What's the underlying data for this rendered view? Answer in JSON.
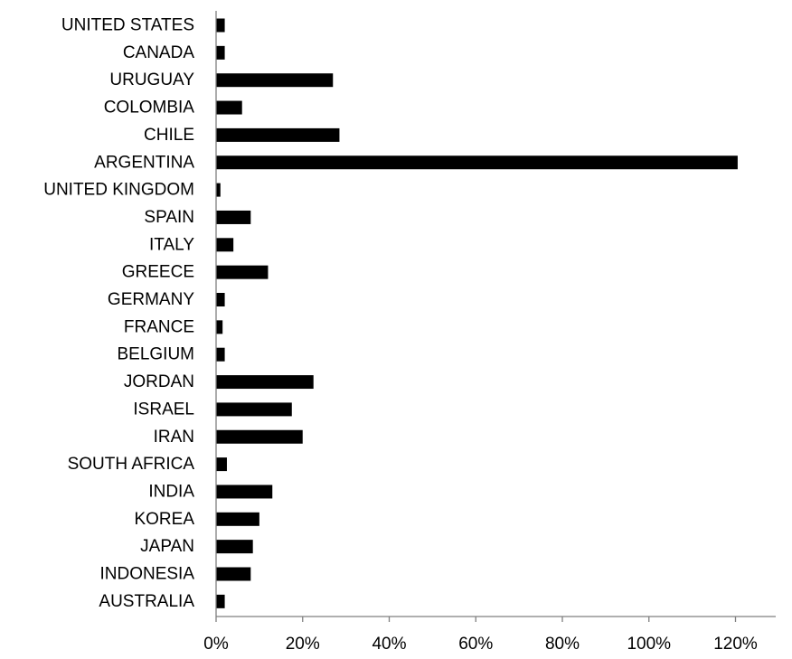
{
  "chart_data": {
    "type": "bar",
    "orientation": "horizontal",
    "categories": [
      "UNITED STATES",
      "CANADA",
      "URUGUAY",
      "COLOMBIA",
      "CHILE",
      "ARGENTINA",
      "UNITED KINGDOM",
      "SPAIN",
      "ITALY",
      "GREECE",
      "GERMANY",
      "FRANCE",
      "BELGIUM",
      "JORDAN",
      "ISRAEL",
      "IRAN",
      "SOUTH AFRICA",
      "INDIA",
      "KOREA",
      "JAPAN",
      "INDONESIA",
      "AUSTRALIA"
    ],
    "values": [
      2,
      2,
      27,
      6,
      28.5,
      120.5,
      1,
      8,
      4,
      12,
      2,
      1.5,
      2,
      22.5,
      17.5,
      20,
      2.5,
      13,
      10,
      8.5,
      8,
      2
    ],
    "x_ticks": [
      "0%",
      "20%",
      "40%",
      "60%",
      "80%",
      "100%",
      "120%"
    ],
    "xlim": [
      0,
      130
    ],
    "title": "",
    "xlabel": "",
    "ylabel": "",
    "grid": false,
    "bar_color": "#000000",
    "axis_color": "#7f7f7f"
  }
}
